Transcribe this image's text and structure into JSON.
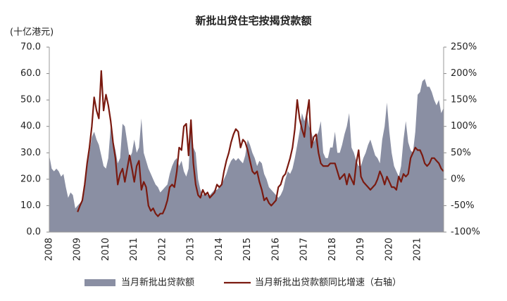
{
  "chart_data": {
    "type": "area-line",
    "title": "新批出贷住宅按揭贷款额",
    "y_axis_label": "(十亿港元)",
    "categories": [
      "2008",
      null,
      null,
      null,
      null,
      null,
      null,
      null,
      null,
      null,
      null,
      null,
      "2009",
      null,
      null,
      null,
      null,
      null,
      null,
      null,
      null,
      null,
      null,
      null,
      "2010",
      null,
      null,
      null,
      null,
      null,
      null,
      null,
      null,
      null,
      null,
      null,
      "2011",
      null,
      null,
      null,
      null,
      null,
      null,
      null,
      null,
      null,
      null,
      null,
      "2012",
      null,
      null,
      null,
      null,
      null,
      null,
      null,
      null,
      null,
      null,
      null,
      "2013",
      null,
      null,
      null,
      null,
      null,
      null,
      null,
      null,
      null,
      null,
      null,
      "2014",
      null,
      null,
      null,
      null,
      null,
      null,
      null,
      null,
      null,
      null,
      null,
      "2015",
      null,
      null,
      null,
      null,
      null,
      null,
      null,
      null,
      null,
      null,
      null,
      "2016",
      null,
      null,
      null,
      null,
      null,
      null,
      null,
      null,
      null,
      null,
      null,
      "2017",
      null,
      null,
      null,
      null,
      null,
      null,
      null,
      null,
      null,
      null,
      null,
      "2018",
      null,
      null,
      null,
      null,
      null,
      null,
      null,
      null,
      null,
      null,
      null,
      "2019",
      null,
      null,
      null,
      null,
      null,
      null,
      null,
      null,
      null,
      null,
      null,
      "2020",
      null,
      null,
      null,
      null,
      null,
      null,
      null,
      null,
      null,
      null,
      null,
      "2021",
      null,
      null,
      null,
      null,
      null,
      null,
      null,
      null,
      null,
      null,
      null
    ],
    "series": [
      {
        "name": "当月新批出贷款额",
        "color": "#8a8fa3",
        "kind": "area",
        "values": [
          29,
          24,
          23,
          24,
          23,
          21,
          22,
          17,
          13,
          15,
          14,
          9,
          10,
          11,
          12,
          18,
          25,
          30,
          36,
          38,
          35,
          33,
          29,
          25,
          24,
          28,
          40,
          35,
          31,
          26,
          28,
          41,
          40,
          34,
          28,
          30,
          35,
          30,
          32,
          43,
          30,
          27,
          24,
          22,
          20,
          18,
          17,
          15,
          16,
          17,
          18,
          22,
          25,
          27,
          28,
          25,
          27,
          23,
          21,
          24,
          40,
          32,
          30,
          20,
          16,
          14,
          15,
          14,
          14,
          15,
          16,
          16,
          17,
          18,
          20,
          22,
          25,
          27,
          28,
          27,
          28,
          27,
          26,
          29,
          35,
          33,
          30,
          28,
          25,
          27,
          26,
          22,
          20,
          17,
          16,
          15,
          14,
          13,
          14,
          16,
          20,
          23,
          22,
          24,
          28,
          33,
          38,
          45,
          42,
          45,
          40,
          38,
          34,
          36,
          38,
          42,
          30,
          28,
          28,
          32,
          32,
          38,
          30,
          30,
          33,
          37,
          40,
          45,
          32,
          30,
          27,
          25,
          25,
          28,
          30,
          33,
          35,
          32,
          29,
          28,
          26,
          35,
          40,
          49,
          38,
          30,
          25,
          23,
          21,
          25,
          35,
          42,
          34,
          31,
          30,
          38,
          52,
          53,
          57,
          58,
          55,
          55,
          53,
          50,
          48,
          50,
          45,
          47
        ]
      },
      {
        "name": "当月新批出贷款额同比增速（右轴）",
        "color": "#7a1a10",
        "kind": "line",
        "axis": "y2",
        "values": [
          null,
          null,
          null,
          null,
          null,
          null,
          null,
          null,
          null,
          null,
          null,
          null,
          -62,
          -50,
          -40,
          -10,
          30,
          60,
          100,
          155,
          130,
          115,
          205,
          130,
          160,
          140,
          110,
          70,
          40,
          -10,
          10,
          20,
          -5,
          20,
          45,
          20,
          -5,
          25,
          35,
          -20,
          -5,
          -15,
          -50,
          -60,
          -55,
          -65,
          -70,
          -65,
          -65,
          -55,
          -40,
          -15,
          -10,
          -15,
          15,
          60,
          55,
          100,
          105,
          45,
          112,
          30,
          -10,
          -30,
          -35,
          -20,
          -30,
          -25,
          -35,
          -30,
          -25,
          -10,
          -15,
          -10,
          15,
          35,
          50,
          70,
          85,
          95,
          90,
          60,
          75,
          70,
          55,
          35,
          15,
          10,
          15,
          -5,
          -20,
          -40,
          -35,
          -45,
          -50,
          -45,
          -40,
          -15,
          -10,
          5,
          10,
          25,
          40,
          60,
          95,
          150,
          115,
          95,
          80,
          120,
          150,
          60,
          80,
          85,
          50,
          30,
          25,
          25,
          25,
          30,
          30,
          30,
          15,
          0,
          5,
          10,
          -10,
          10,
          0,
          -10,
          30,
          55,
          5,
          -5,
          -10,
          -15,
          -20,
          -15,
          -10,
          0,
          15,
          5,
          -10,
          5,
          -5,
          -15,
          -15,
          -20,
          5,
          -5,
          10,
          5,
          10,
          40,
          50,
          60,
          55,
          55,
          45,
          30,
          25,
          30,
          40,
          40,
          35,
          30,
          20,
          15
        ]
      }
    ],
    "ylim": [
      0,
      70
    ],
    "yticks": [
      {
        "value": 0,
        "label": "0.0"
      },
      {
        "value": 10,
        "label": "10.0"
      },
      {
        "value": 20,
        "label": "20.0"
      },
      {
        "value": 30,
        "label": "30.0"
      },
      {
        "value": 40,
        "label": "40.0"
      },
      {
        "value": 50,
        "label": "50.0"
      },
      {
        "value": 60,
        "label": "60.0"
      },
      {
        "value": 70,
        "label": "70.0"
      }
    ],
    "y2lim": [
      -100,
      250
    ],
    "y2ticks": [
      {
        "value": -100,
        "label": "-100%"
      },
      {
        "value": -50,
        "label": "-50%"
      },
      {
        "value": 0,
        "label": "0%"
      },
      {
        "value": 50,
        "label": "50%"
      },
      {
        "value": 100,
        "label": "100%"
      },
      {
        "value": 150,
        "label": "150%"
      },
      {
        "value": 200,
        "label": "200%"
      },
      {
        "value": 250,
        "label": "250%"
      }
    ],
    "legend": "bottom"
  }
}
